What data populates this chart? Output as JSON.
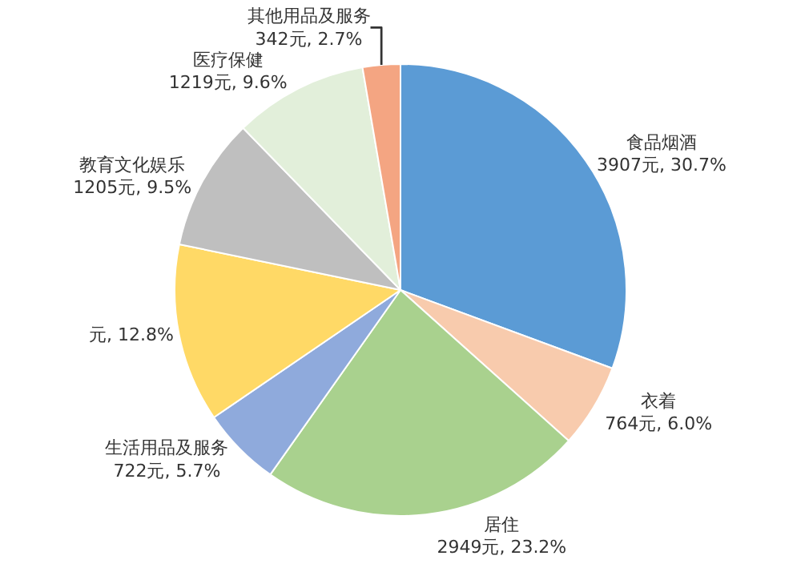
{
  "chart_data": {
    "type": "pie",
    "categories": [
      "食品烟酒",
      "衣着",
      "居住",
      "生活用品及服务",
      null,
      "教育文化娱乐",
      "医疗保健",
      "其他用品及服务"
    ],
    "values": [
      30.7,
      6.0,
      23.2,
      5.7,
      12.8,
      9.5,
      9.6,
      2.7
    ],
    "value_labels": [
      "3907元, 30.7%",
      "764元, 6.0%",
      "2949元, 23.2%",
      "722元, 5.7%",
      "元, 12.8%",
      "1205元, 9.5%",
      "1219元, 9.6%",
      "342元, 2.7%"
    ],
    "colors": [
      "#5b9bd5",
      "#f8cbad",
      "#a9d18e",
      "#8faadc",
      "#ffd966",
      "#bfbfbf",
      "#e2efda",
      "#f4a582"
    ],
    "legend": false
  }
}
